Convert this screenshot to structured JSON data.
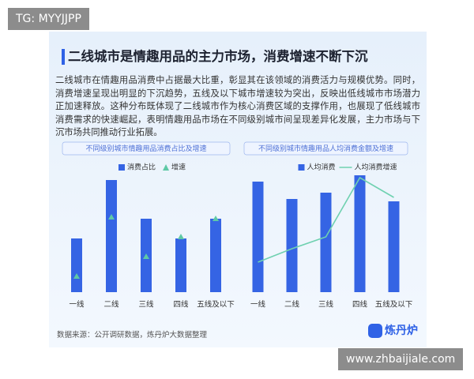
{
  "watermark_tag": "TG: MYYJJPP",
  "site_tag": "www.zhbaijiale.com",
  "title": "二线城市是情趣用品的主力市场，消费增速不断下沉",
  "paragraph": "二线城市在情趣用品消费中占据最大比重，彰显其在该领域的消费活力与规模优势。同时，消费增速呈现出明显的下沉趋势，五线及以下城市增速较为突出，反映出低线城市市场潜力正加速释放。这种分布既体现了二线城市作为核心消费区域的支撑作用，也展现了低线城市消费需求的快速崛起，表明情趣用品市场在不同级别城市间呈现差异化发展，主力市场与下沉市场共同推动行业拓展。",
  "source": "数据来源：公开调研数据，炼丹炉大数据整理",
  "logo": "炼丹炉",
  "chart_data": [
    {
      "type": "bar",
      "title": "不同级别城市情趣用品消费占比及增速",
      "categories": [
        "一线",
        "二线",
        "三线",
        "四线",
        "五线及以下"
      ],
      "ylim": [
        0,
        160
      ],
      "series": [
        {
          "name": "消费占比",
          "color": "#3564e4",
          "style": "bar",
          "values": [
            68,
            142,
            93,
            68,
            93
          ]
        },
        {
          "name": "增速",
          "color": "#5ec9a6",
          "style": "triangle",
          "values": [
            20,
            95,
            45,
            70,
            93
          ]
        }
      ]
    },
    {
      "type": "bar",
      "title": "不同级别城市情趣用品人均消费金额及增速",
      "categories": [
        "一线",
        "二线",
        "三线",
        "四线",
        "五线及以下"
      ],
      "ylim": [
        0,
        160
      ],
      "series": [
        {
          "name": "人均消费",
          "color": "#3564e4",
          "style": "bar",
          "values": [
            140,
            118,
            126,
            148,
            115
          ]
        },
        {
          "name": "人均消费增速",
          "color": "#6fd1b0",
          "style": "line",
          "values": [
            38,
            55,
            70,
            145,
            120
          ]
        }
      ]
    }
  ]
}
